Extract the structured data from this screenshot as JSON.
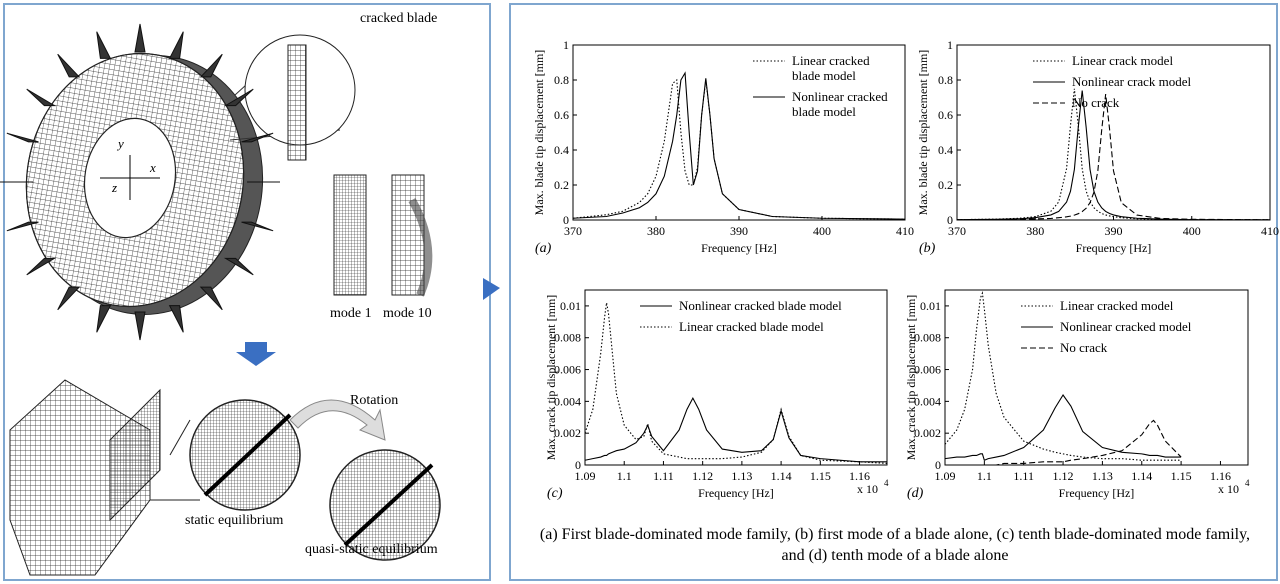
{
  "diagram": {
    "labels": {
      "cracked_blade": "cracked blade",
      "mode_1": "mode 1",
      "mode_10": "mode 10",
      "rotation": "Rotation",
      "static": "static equilibrium",
      "quasi_static": "quasi-static equilibrium",
      "axis_y": "y",
      "axis_x": "x",
      "axis_z": "z"
    }
  },
  "chart_data": [
    {
      "type": "line",
      "panel_label": "(a)",
      "x_label": "Frequency [Hz]",
      "y_label": "Max. blade tip displacement [mm]",
      "x": [
        370,
        374,
        376,
        378,
        379,
        380,
        381,
        382,
        382.5,
        383,
        383.5,
        384,
        384.5,
        385,
        385.5,
        386,
        386.5,
        387,
        388,
        390,
        394,
        400,
        410
      ],
      "series": [
        {
          "name": "Linear cracked blade model",
          "color": "#000000",
          "style": "dotted",
          "values": [
            0.01,
            0.03,
            0.05,
            0.1,
            0.15,
            0.25,
            0.45,
            0.78,
            0.8,
            0.5,
            0.28,
            0.2,
            0.2,
            0.3,
            0.6,
            0.8,
            0.6,
            0.35,
            0.15,
            0.06,
            0.02,
            0.01,
            0.005
          ]
        },
        {
          "name": "Nonlinear cracked blade model",
          "color": "#000000",
          "style": "solid",
          "values": [
            0.01,
            0.02,
            0.04,
            0.07,
            0.1,
            0.15,
            0.25,
            0.45,
            0.6,
            0.8,
            0.84,
            0.5,
            0.2,
            0.28,
            0.6,
            0.81,
            0.6,
            0.35,
            0.15,
            0.06,
            0.02,
            0.01,
            0.005
          ]
        }
      ],
      "xlim": [
        370,
        410
      ],
      "ylim": [
        0,
        1
      ],
      "xticks": [
        370,
        380,
        390,
        400,
        410
      ],
      "yticks": [
        0,
        0.2,
        0.4,
        0.6,
        0.8,
        1
      ],
      "legend_position": "upper right"
    },
    {
      "type": "line",
      "panel_label": "(b)",
      "x_label": "Frequency [Hz]",
      "y_label": "Max. blade tip displacement [mm]",
      "x": [
        370,
        375,
        378,
        380,
        382,
        383,
        384,
        384.5,
        385,
        385.5,
        386,
        386.5,
        387,
        387.5,
        388,
        388.5,
        389,
        389.5,
        390,
        391,
        393,
        396,
        400,
        410
      ],
      "series": [
        {
          "name": "Linear crack model",
          "color": "#000000",
          "style": "dotted",
          "values": [
            0.002,
            0.005,
            0.01,
            0.019,
            0.05,
            0.103,
            0.293,
            0.539,
            0.75,
            0.539,
            0.293,
            0.166,
            0.103,
            0.07,
            0.05,
            0.037,
            0.029,
            0.023,
            0.019,
            0.013,
            0.007,
            0.004,
            0.002,
            0.001
          ]
        },
        {
          "name": "Nonlinear crack model",
          "color": "#000000",
          "style": "solid",
          "values": [
            0.002,
            0.004,
            0.007,
            0.013,
            0.029,
            0.049,
            0.102,
            0.164,
            0.289,
            0.532,
            0.74,
            0.532,
            0.289,
            0.164,
            0.102,
            0.069,
            0.049,
            0.037,
            0.029,
            0.019,
            0.01,
            0.005,
            0.002,
            0.001
          ]
        },
        {
          "name": "No crack",
          "color": "#000000",
          "style": "dashed",
          "values": [
            0.001,
            0.002,
            0.004,
            0.006,
            0.009,
            0.013,
            0.018,
            0.022,
            0.028,
            0.036,
            0.048,
            0.067,
            0.099,
            0.159,
            0.281,
            0.518,
            0.72,
            0.518,
            0.281,
            0.099,
            0.028,
            0.009,
            0.004,
            0.001
          ]
        }
      ],
      "xlim": [
        370,
        410
      ],
      "ylim": [
        0,
        1
      ],
      "xticks": [
        370,
        380,
        390,
        400,
        410
      ],
      "yticks": [
        0,
        0.2,
        0.4,
        0.6,
        0.8,
        1
      ],
      "legend_position": "upper right"
    },
    {
      "type": "line",
      "panel_label": "(c)",
      "x_label": "Frequency [Hz]",
      "y_label": "Max. crack tip displacement [mm]",
      "x_scale_label": "x 10",
      "x_scale_exponent": "4",
      "x": [
        1.09,
        1.092,
        1.094,
        1.095,
        1.0955,
        1.096,
        1.097,
        1.098,
        1.1,
        1.103,
        1.105,
        1.106,
        1.107,
        1.11,
        1.114,
        1.116,
        1.1175,
        1.119,
        1.121,
        1.125,
        1.13,
        1.135,
        1.138,
        1.14,
        1.142,
        1.145,
        1.15,
        1.16,
        1.167
      ],
      "series": [
        {
          "name": "Nonlinear cracked blade model",
          "color": "#000000",
          "style": "solid",
          "values": [
            0.0003,
            0.0004,
            0.0005,
            0.0006,
            0.0006,
            0.0007,
            0.0008,
            0.0009,
            0.001,
            0.0014,
            0.002,
            0.0025,
            0.0018,
            0.0009,
            0.0022,
            0.0035,
            0.0042,
            0.0035,
            0.0022,
            0.001,
            0.0008,
            0.0009,
            0.0016,
            0.0034,
            0.0017,
            0.0006,
            0.0004,
            0.0002,
            0.0002
          ]
        },
        {
          "name": "Linear cracked blade model",
          "color": "#000000",
          "style": "dotted",
          "values": [
            0.002,
            0.0035,
            0.007,
            0.0093,
            0.0102,
            0.0095,
            0.007,
            0.0045,
            0.0025,
            0.0016,
            0.0018,
            0.0026,
            0.0015,
            0.0007,
            0.0005,
            0.0004,
            0.0004,
            0.0004,
            0.0004,
            0.0004,
            0.0005,
            0.0008,
            0.0016,
            0.0035,
            0.0018,
            0.0006,
            0.0003,
            0.0002,
            0.0001
          ]
        }
      ],
      "xlim": [
        1.09,
        1.167
      ],
      "ylim": [
        0,
        0.011
      ],
      "xticks": [
        1.09,
        1.1,
        1.11,
        1.12,
        1.13,
        1.14,
        1.15,
        1.16
      ],
      "yticks": [
        0,
        0.002,
        0.004,
        0.006,
        0.008,
        0.01
      ],
      "legend_position": "upper right"
    },
    {
      "type": "line",
      "panel_label": "(d)",
      "x_label": "Frequency [Hz]",
      "y_label": "Max. crack tip displacement [mm]",
      "x_scale_label": "x 10",
      "x_scale_exponent": "4",
      "x": [
        1.09,
        1.093,
        1.095,
        1.097,
        1.098,
        1.099,
        1.0995,
        1.1,
        1.101,
        1.103,
        1.105,
        1.11,
        1.115,
        1.118,
        1.12,
        1.122,
        1.125,
        1.13,
        1.135,
        1.14,
        1.142,
        1.143,
        1.144,
        1.146,
        1.15
      ],
      "series": [
        {
          "name": "Linear cracked model",
          "color": "#000000",
          "style": "dotted",
          "values": [
            0.0013,
            0.0022,
            0.0035,
            0.006,
            0.0085,
            0.0105,
            0.0108,
            0.0098,
            0.0075,
            0.0045,
            0.003,
            0.0015,
            0.001,
            0.0008,
            0.0007,
            0.0006,
            0.0005,
            0.0004,
            0.0004,
            0.0003,
            0.0003,
            0.0003,
            0.0003,
            0.0003,
            0.0003
          ]
        },
        {
          "name": "Nonlinear cracked model",
          "color": "#000000",
          "style": "solid",
          "values": [
            0.0004,
            0.0005,
            0.0005,
            0.0006,
            0.0006,
            0.0007,
            0.0007,
            0.0003,
            0.0004,
            0.0005,
            0.0006,
            0.0011,
            0.0022,
            0.0036,
            0.0044,
            0.0037,
            0.0021,
            0.0011,
            0.0008,
            0.0007,
            0.0006,
            0.0006,
            0.0006,
            0.0005,
            0.0005
          ]
        },
        {
          "name": "No crack",
          "color": "#000000",
          "style": "dashed",
          "values": [
            null,
            null,
            null,
            null,
            null,
            null,
            null,
            0,
            0,
            0,
            0.0001,
            0.0001,
            0.0002,
            0.0002,
            0.0002,
            0.0003,
            0.0004,
            0.0006,
            0.0009,
            0.0019,
            0.0026,
            0.0028,
            0.0025,
            0.0015,
            0.0005
          ]
        }
      ],
      "xlim": [
        1.09,
        1.167
      ],
      "ylim": [
        0,
        0.011
      ],
      "xticks": [
        1.09,
        1.1,
        1.11,
        1.12,
        1.13,
        1.14,
        1.15,
        1.16
      ],
      "yticks": [
        0,
        0.002,
        0.004,
        0.006,
        0.008,
        0.01
      ],
      "legend_position": "upper right"
    }
  ],
  "caption": "(a) First blade-dominated mode family, (b) first mode of a blade alone, (c) tenth blade-dominated mode family, and (d) tenth mode of a blade alone"
}
